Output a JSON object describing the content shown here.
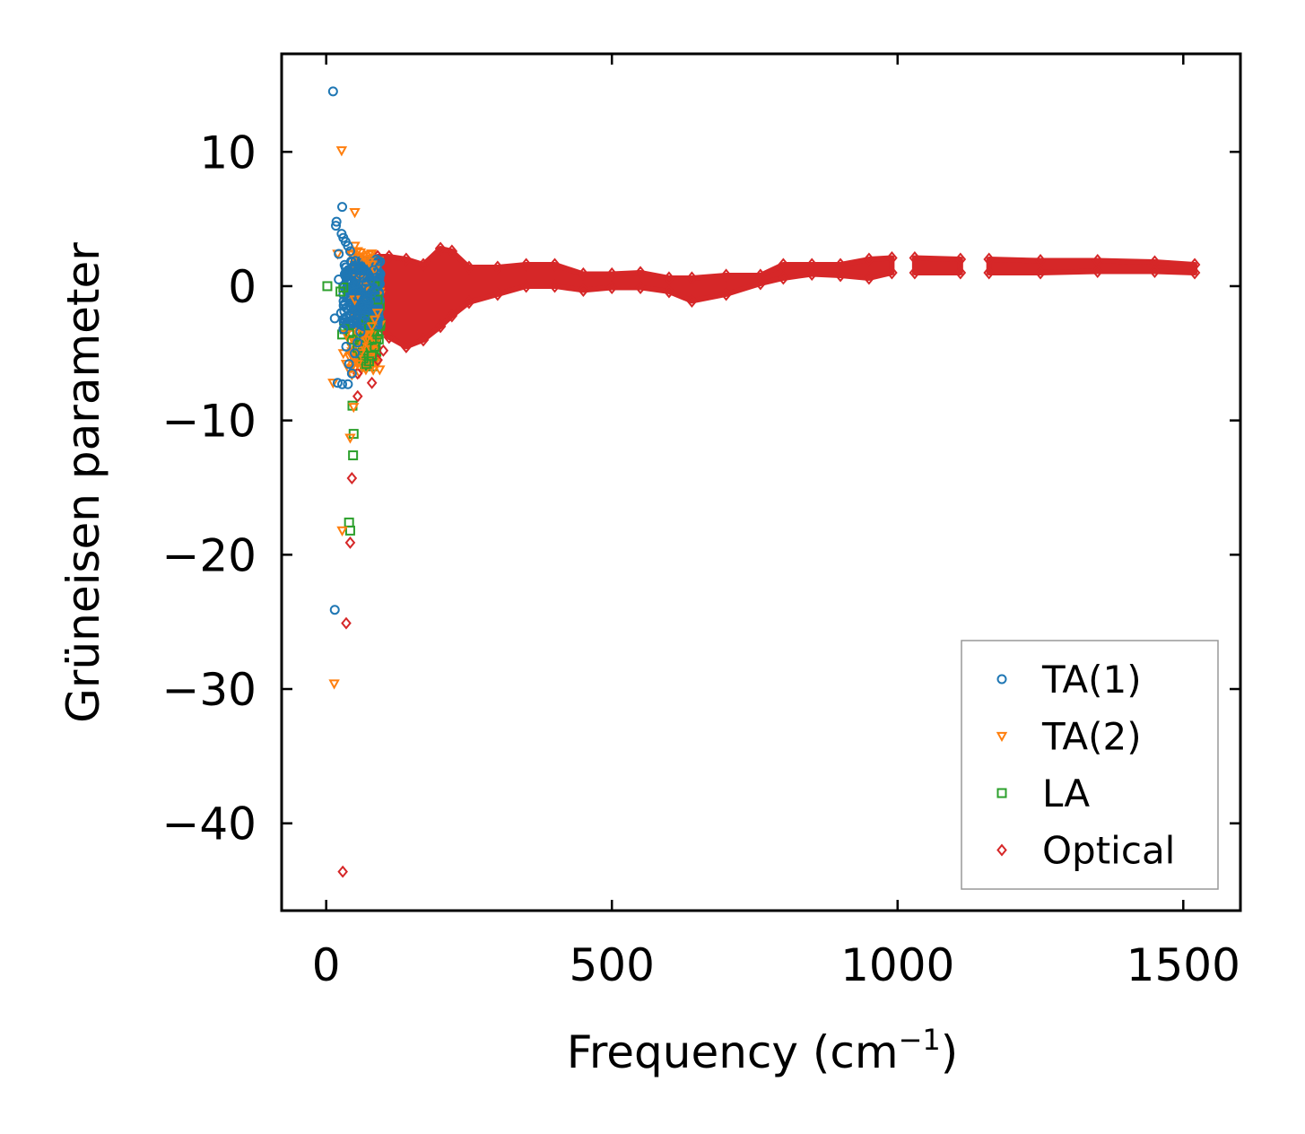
{
  "chart_data": {
    "type": "scatter",
    "xlabel": "Frequency (cm",
    "xlabel_sup": "−1",
    "xlabel_end": ")",
    "ylabel": "Grüneisen parameter",
    "xlim": [
      -78,
      1600
    ],
    "ylim": [
      -46.5,
      17.3
    ],
    "xticks": [
      0,
      500,
      1000,
      1500
    ],
    "xtick_labels": [
      "0",
      "500",
      "1000",
      "1500"
    ],
    "yticks": [
      10,
      0,
      -10,
      -20,
      -30,
      -40
    ],
    "ytick_labels": [
      "10",
      "0",
      "−10",
      "−20",
      "−30",
      "−40"
    ],
    "legend_position": "lower-right",
    "series": [
      {
        "name": "TA(1)",
        "marker": "circle",
        "color": "#1f77b4",
        "points": [
          [
            12,
            14.5
          ],
          [
            17,
            4.5
          ],
          [
            18,
            4.8
          ],
          [
            22,
            2.4
          ],
          [
            28,
            5.9
          ],
          [
            27,
            3.9
          ],
          [
            30,
            3.6
          ],
          [
            34,
            3.3
          ],
          [
            38,
            3.0
          ],
          [
            42,
            2.6
          ],
          [
            45,
            1.8
          ],
          [
            50,
            1.5
          ],
          [
            55,
            1.2
          ],
          [
            60,
            0.9
          ],
          [
            65,
            0.6
          ],
          [
            70,
            0.3
          ],
          [
            75,
            -0.2
          ],
          [
            80,
            -0.5
          ],
          [
            85,
            -0.3
          ],
          [
            90,
            0.2
          ],
          [
            22,
            0.5
          ],
          [
            15,
            -2.4
          ],
          [
            26,
            -2.0
          ],
          [
            30,
            -3.2
          ],
          [
            35,
            -4.5
          ],
          [
            40,
            -5.8
          ],
          [
            45,
            -6.5
          ],
          [
            50,
            -5.0
          ],
          [
            55,
            -4.2
          ],
          [
            60,
            -3.4
          ],
          [
            65,
            -2.5
          ],
          [
            70,
            -1.8
          ],
          [
            75,
            -1.2
          ],
          [
            20,
            -7.2
          ],
          [
            28,
            -7.3
          ],
          [
            38,
            -7.3
          ],
          [
            15,
            -24.1
          ],
          [
            48,
            1.0
          ],
          [
            52,
            0.2
          ],
          [
            58,
            -0.8
          ],
          [
            62,
            -1.5
          ],
          [
            68,
            -2.2
          ],
          [
            72,
            -1.0
          ],
          [
            78,
            0.5
          ],
          [
            83,
            1.2
          ]
        ],
        "dense_band": {
          "x_min": 30,
          "x_max": 95,
          "y_min": -3.0,
          "y_max": 2.0,
          "count": 260
        }
      },
      {
        "name": "TA(2)",
        "marker": "triangle-down",
        "color": "#ff7f0e",
        "points": [
          [
            27,
            10.1
          ],
          [
            50,
            5.5
          ],
          [
            20,
            2.4
          ],
          [
            50,
            3.0
          ],
          [
            55,
            2.6
          ],
          [
            60,
            2.5
          ],
          [
            65,
            2.2
          ],
          [
            70,
            2.0
          ],
          [
            75,
            1.8
          ],
          [
            80,
            1.6
          ],
          [
            85,
            1.2
          ],
          [
            30,
            -5.0
          ],
          [
            35,
            -5.8
          ],
          [
            40,
            -6.2
          ],
          [
            45,
            -6.6
          ],
          [
            55,
            -5.8
          ],
          [
            60,
            -5.0
          ],
          [
            65,
            -4.5
          ],
          [
            70,
            -4.0
          ],
          [
            75,
            -3.6
          ],
          [
            80,
            -3.0
          ],
          [
            85,
            -2.5
          ],
          [
            90,
            -2.0
          ],
          [
            12,
            -7.2
          ],
          [
            42,
            -11.3
          ],
          [
            48,
            -9.0
          ],
          [
            28,
            -18.2
          ],
          [
            14,
            -29.6
          ],
          [
            35,
            -3.6
          ],
          [
            50,
            -1.0
          ],
          [
            60,
            0.5
          ],
          [
            70,
            0.0
          ]
        ],
        "dense_band": {
          "x_min": 40,
          "x_max": 95,
          "y_min": -6.5,
          "y_max": 2.5,
          "count": 120
        }
      },
      {
        "name": "LA",
        "marker": "square",
        "color": "#2ca02c",
        "points": [
          [
            2,
            0.0
          ],
          [
            25,
            -0.4
          ],
          [
            30,
            -0.1
          ],
          [
            28,
            -3.6
          ],
          [
            32,
            -3.2
          ],
          [
            40,
            -3.5
          ],
          [
            45,
            -4.0
          ],
          [
            55,
            -4.6
          ],
          [
            60,
            -5.0
          ],
          [
            65,
            -5.4
          ],
          [
            70,
            -5.8
          ],
          [
            75,
            -5.6
          ],
          [
            80,
            -5.2
          ],
          [
            85,
            -4.5
          ],
          [
            90,
            -3.6
          ],
          [
            46,
            -8.9
          ],
          [
            48,
            -11.0
          ],
          [
            47,
            -12.6
          ],
          [
            40,
            -17.6
          ],
          [
            42,
            -18.2
          ],
          [
            85,
            0.0
          ],
          [
            90,
            -1.0
          ],
          [
            70,
            -2.5
          ],
          [
            75,
            -3.0
          ],
          [
            80,
            -4.0
          ]
        ],
        "dense_band": {
          "x_min": 55,
          "x_max": 95,
          "y_min": -6.0,
          "y_max": 0.5,
          "count": 90
        }
      },
      {
        "name": "Optical",
        "marker": "diamond",
        "color": "#d62728",
        "points": [
          [
            55,
            -6.5
          ],
          [
            55,
            -8.2
          ],
          [
            45,
            -14.3
          ],
          [
            42,
            -19.1
          ],
          [
            35,
            -25.1
          ],
          [
            29,
            -43.6
          ],
          [
            100,
            -4.8
          ],
          [
            90,
            -5.5
          ],
          [
            80,
            -7.2
          ]
        ],
        "envelope": [
          [
            90,
            2.2,
            -3.0
          ],
          [
            110,
            2.2,
            -3.8
          ],
          [
            140,
            2.0,
            -4.5
          ],
          [
            170,
            1.6,
            -4.0
          ],
          [
            200,
            2.8,
            -3.0
          ],
          [
            220,
            2.6,
            -2.2
          ],
          [
            250,
            1.4,
            -1.2
          ],
          [
            300,
            1.4,
            -0.6
          ],
          [
            350,
            1.6,
            0.0
          ],
          [
            400,
            1.6,
            0.0
          ],
          [
            450,
            0.9,
            -0.3
          ],
          [
            500,
            0.9,
            -0.1
          ],
          [
            550,
            1.0,
            -0.1
          ],
          [
            600,
            0.6,
            -0.4
          ],
          [
            640,
            0.6,
            -1.1
          ],
          [
            700,
            0.8,
            -0.6
          ],
          [
            760,
            0.8,
            0.2
          ],
          [
            800,
            1.6,
            0.6
          ],
          [
            850,
            1.6,
            0.9
          ],
          [
            900,
            1.6,
            0.8
          ],
          [
            950,
            2.0,
            0.6
          ],
          [
            990,
            2.1,
            1.0
          ],
          [
            1030,
            2.1,
            1.0
          ],
          [
            1110,
            2.0,
            1.0
          ],
          [
            1160,
            2.0,
            1.0
          ],
          [
            1250,
            1.9,
            1.0
          ],
          [
            1350,
            1.9,
            1.1
          ],
          [
            1450,
            1.8,
            1.1
          ],
          [
            1520,
            1.6,
            1.0
          ]
        ],
        "gaps": [
          [
            990,
            1030
          ],
          [
            1110,
            1160
          ]
        ]
      }
    ]
  }
}
